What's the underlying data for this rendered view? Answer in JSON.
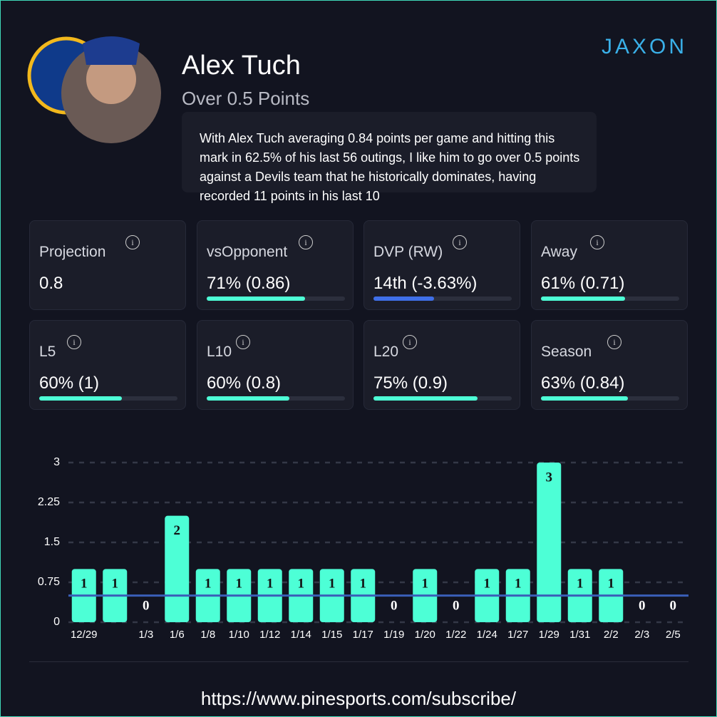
{
  "brand": "JAXON",
  "player": {
    "name": "Alex Tuch",
    "market": "Over 0.5 Points",
    "description": "With Alex Tuch averaging 0.84 points per game and hitting this mark in 62.5% of his last 56 outings, I like him to go over 0.5 points against a Devils team that he historically dominates, having recorded 11 points in his last 10"
  },
  "stats": [
    {
      "label": "Projection",
      "value": "0.8"
    },
    {
      "label": "vsOpponent",
      "value": "71% (0.86)",
      "progress": 71,
      "color": "#4dffd6"
    },
    {
      "label": "DVP (RW)",
      "value": "14th (-3.63%)",
      "progress": 44,
      "color": "#3f6fe8"
    },
    {
      "label": "Away",
      "value": "61% (0.71)",
      "progress": 61,
      "color": "#4dffd6"
    },
    {
      "label": "L5",
      "value": "60% (1)",
      "progress": 60,
      "color": "#4dffd6"
    },
    {
      "label": "L10",
      "value": "60% (0.8)",
      "progress": 60,
      "color": "#4dffd6"
    },
    {
      "label": "L20",
      "value": "75% (0.9)",
      "progress": 75,
      "color": "#4dffd6"
    },
    {
      "label": "Season",
      "value": "63% (0.84)",
      "progress": 63,
      "color": "#4dffd6"
    }
  ],
  "chart_data": {
    "type": "bar",
    "categories": [
      "12/29",
      null,
      "1/3",
      "1/6",
      "1/8",
      "1/10",
      "1/12",
      "1/14",
      "1/15",
      "1/17",
      "1/19",
      "1/20",
      "1/22",
      "1/24",
      "1/27",
      "1/29",
      "1/31",
      "2/2",
      "2/3",
      "2/5"
    ],
    "values": [
      1,
      1,
      0,
      2,
      1,
      1,
      1,
      1,
      1,
      1,
      0,
      1,
      0,
      1,
      1,
      3,
      1,
      1,
      0,
      0
    ],
    "color": "#4dffd6",
    "threshold": 0.5,
    "threshold_color": "#3a5fb8",
    "ylim": [
      0,
      3
    ],
    "yticks": [
      0,
      0.75,
      1.5,
      2.25,
      3
    ],
    "grid": true
  },
  "footer": "https://www.pinesports.com/subscribe/"
}
